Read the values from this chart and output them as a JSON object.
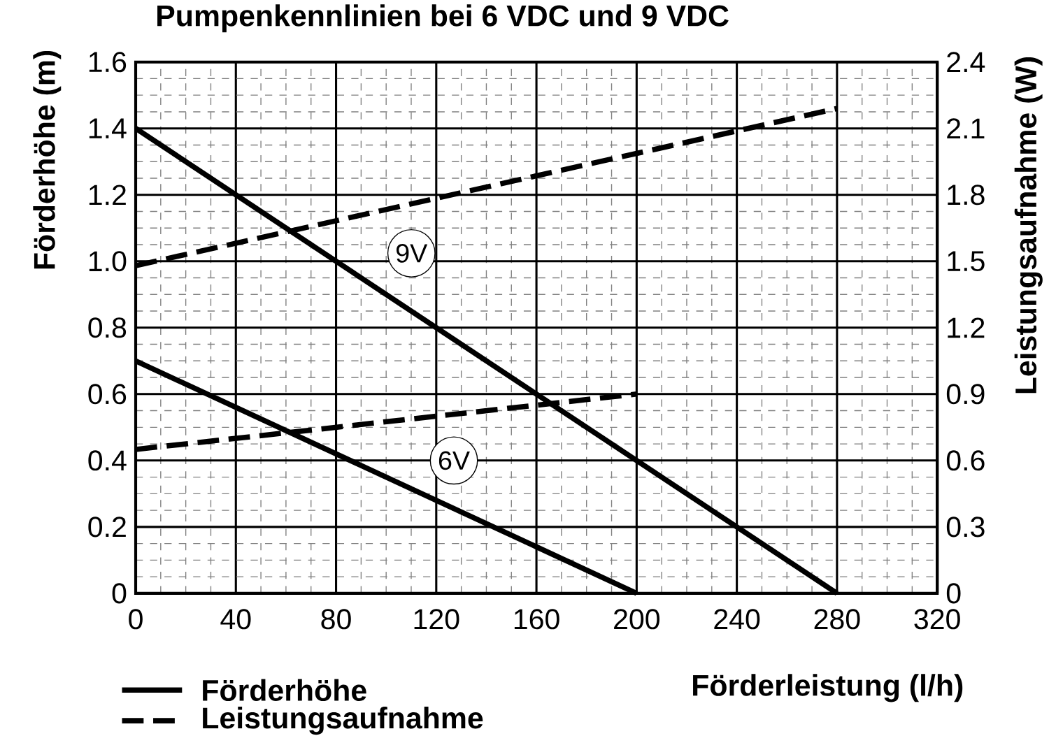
{
  "chart_data": {
    "type": "line",
    "title": "Pumpenkennlinien bei 6 VDC und 9 VDC",
    "xlabel": "Förderleistung (l/h)",
    "ylabel": "Förderhöhe (m)",
    "y2label": "Leistungsaufnahme (W)",
    "xlim": [
      0,
      320
    ],
    "xticks": [
      0,
      40,
      80,
      120,
      160,
      200,
      240,
      280,
      320
    ],
    "ylim": [
      0,
      1.6
    ],
    "yticks": [
      0,
      0.2,
      0.4,
      0.6,
      0.8,
      {
        "value": 1,
        "label": "1.0"
      },
      1.2,
      1.4,
      1.6
    ],
    "y2lim": [
      0,
      2.4
    ],
    "y2ticks": [
      0,
      0.3,
      0.6,
      0.9,
      1.2,
      1.5,
      1.8,
      2.1,
      2.4
    ],
    "grid": true,
    "legend": "bottom left",
    "marker": "none",
    "series": [
      {
        "name": "Förderhöhe",
        "color": "#000000",
        "x": [
          0,
          280
        ],
        "values": [
          1.4,
          0
        ],
        "line_style": "solid"
      },
      {
        "name": "Leistungsaufnahme",
        "color": "#000000",
        "x": [
          0,
          280
        ],
        "values": [
          1.48,
          2.19
        ],
        "axis": "y2",
        "line_style": "dashed"
      },
      {
        "color": "#000000",
        "x": [
          0,
          200
        ],
        "values": [
          0.7,
          0
        ],
        "line_style": "solid"
      },
      {
        "color": "#000000",
        "x": [
          0,
          200
        ],
        "values": [
          0.65,
          0.9
        ],
        "axis": "y2",
        "line_style": "dashed"
      }
    ],
    "annotations": [
      "9V",
      "6V"
    ]
  }
}
